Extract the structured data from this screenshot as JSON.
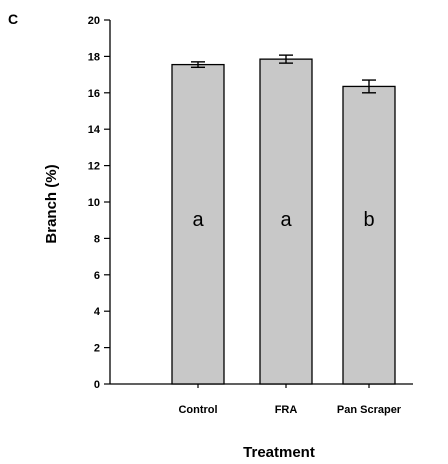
{
  "panel_label": "C",
  "chart_data": {
    "type": "bar",
    "categories": [
      "Control",
      "FRA",
      "Pan Scraper"
    ],
    "values": [
      17.55,
      17.85,
      16.35
    ],
    "errors": [
      0.15,
      0.22,
      0.35
    ],
    "significance_letters": [
      "a",
      "a",
      "b"
    ],
    "xlabel": "Treatment",
    "ylabel": "Branch (%)",
    "ylim": [
      0,
      20
    ],
    "yticks": [
      0,
      2,
      4,
      6,
      8,
      10,
      12,
      14,
      16,
      18,
      20
    ],
    "bar_color": "#c8c8c8",
    "grid": false
  }
}
